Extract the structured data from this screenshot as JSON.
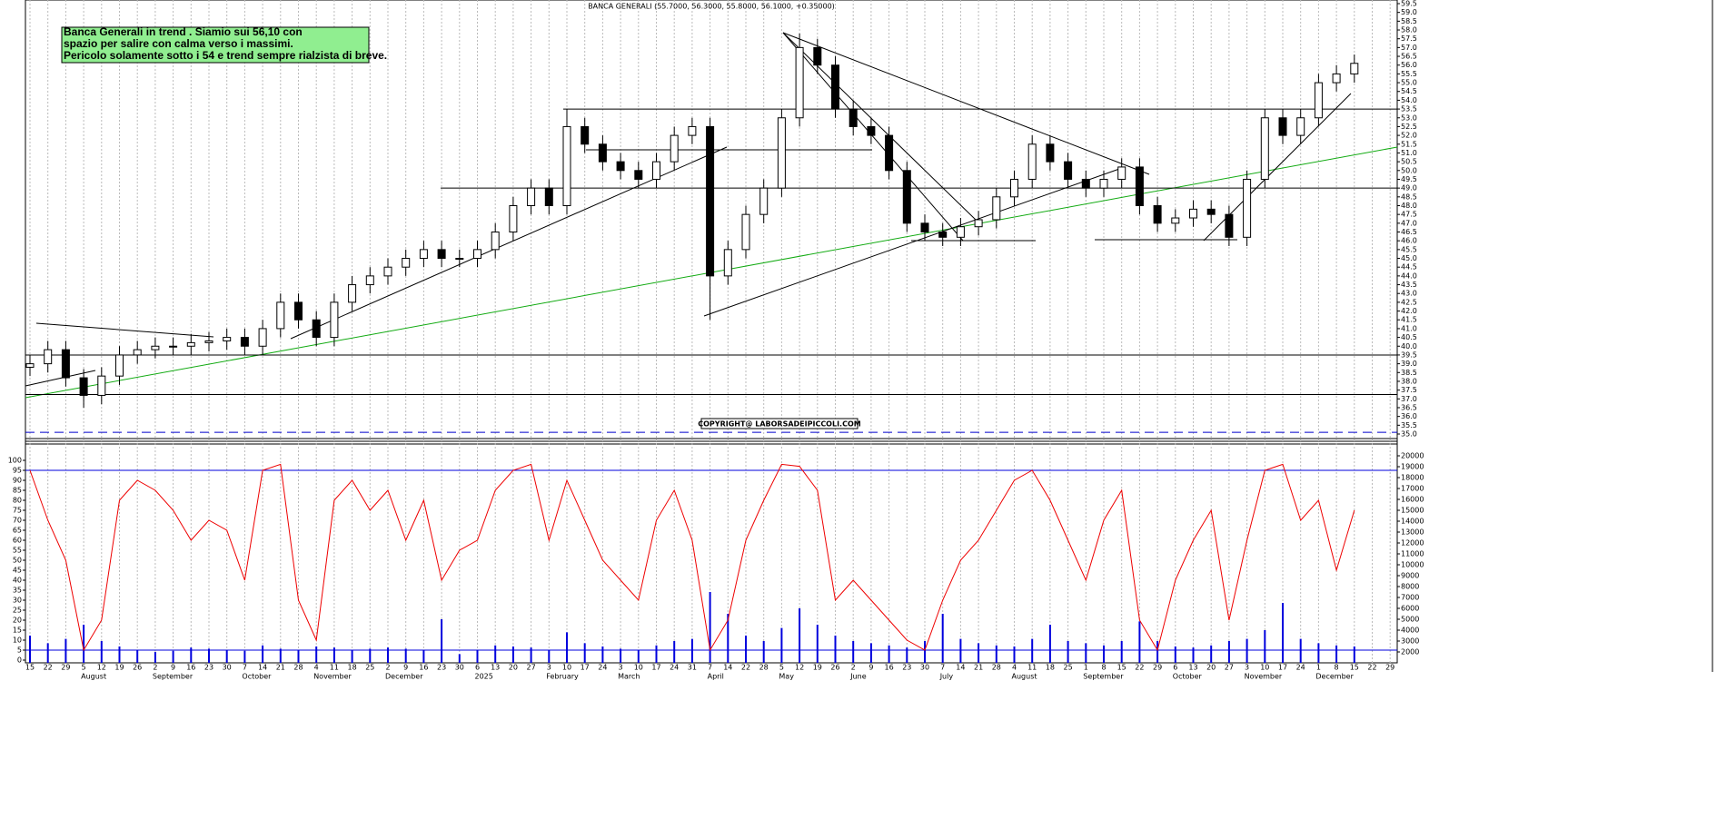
{
  "chart_data": [
    {
      "type": "candlestick",
      "title": "BANCA GENERALI (55.7000, 56.3000, 55.8000, 56.1000, +0.35000)",
      "annotation": [
        "Banca Generali in trend . Siamio sui 56,10 con",
        "spazio per salire con calma verso i massimi.",
        "Pericolo solamente sotto i 54 e trend sempre rialzista di breve."
      ],
      "copyright": "COPYRIGHT@ LABORSADEIPICCOLI.COM",
      "categories": [
        "15",
        "22",
        "29",
        "5",
        "12",
        "19",
        "26",
        "2",
        "9",
        "16",
        "23",
        "30",
        "7",
        "14",
        "21",
        "28",
        "4",
        "11",
        "18",
        "25",
        "2",
        "9",
        "16",
        "23",
        "30",
        "6",
        "13",
        "20",
        "27",
        "3",
        "10",
        "17",
        "24",
        "3",
        "10",
        "17",
        "24",
        "31",
        "7",
        "14",
        "22",
        "28",
        "5",
        "12",
        "19",
        "26",
        "2",
        "9",
        "16",
        "23",
        "30",
        "7",
        "14",
        "21",
        "28",
        "4",
        "11",
        "18",
        "25",
        "1",
        "8",
        "15",
        "22",
        "29",
        "6",
        "13",
        "20",
        "27",
        "3",
        "10",
        "17",
        "24",
        "1",
        "8",
        "15",
        "22",
        "29"
      ],
      "month_labels": [
        null,
        null,
        null,
        "August",
        null,
        null,
        null,
        "September",
        null,
        null,
        null,
        null,
        "October",
        null,
        null,
        null,
        "November",
        null,
        null,
        null,
        "December",
        null,
        null,
        null,
        null,
        "2025",
        null,
        null,
        null,
        "February",
        null,
        null,
        null,
        "March",
        null,
        null,
        null,
        null,
        "April",
        null,
        null,
        null,
        "May",
        null,
        null,
        null,
        "June",
        null,
        null,
        null,
        null,
        "July",
        null,
        null,
        null,
        "August",
        null,
        null,
        null,
        "September",
        null,
        null,
        null,
        null,
        "October",
        null,
        null,
        null,
        "November",
        null,
        null,
        null,
        "December",
        null,
        null,
        null,
        null
      ],
      "open": [
        38.8,
        39.0,
        39.8,
        38.2,
        37.2,
        38.3,
        39.5,
        39.8,
        40.0,
        40.0,
        40.2,
        40.3,
        40.5,
        40.0,
        41.0,
        42.5,
        41.5,
        40.5,
        42.5,
        43.5,
        44.0,
        44.5,
        45.0,
        45.5,
        45.0,
        45.0,
        45.5,
        46.5,
        48.0,
        49.0,
        48.0,
        52.5,
        51.5,
        50.5,
        50.0,
        49.5,
        50.5,
        52.0,
        52.5,
        44.0,
        45.5,
        47.5,
        49.0,
        53.0,
        57.0,
        56.0,
        53.5,
        52.5,
        52.0,
        50.0,
        47.0,
        46.5,
        46.2,
        46.8,
        47.2,
        48.5,
        49.5,
        51.5,
        50.5,
        49.5,
        49.0,
        49.5,
        50.2,
        48.0,
        47.0,
        47.3,
        47.8,
        47.5,
        46.2,
        49.5,
        53.0,
        52.0,
        53.0,
        55.0,
        55.5,
        null,
        null
      ],
      "high": [
        39.5,
        40.3,
        40.3,
        38.7,
        38.8,
        40.0,
        40.3,
        40.5,
        40.5,
        40.7,
        40.8,
        41.0,
        41.0,
        41.5,
        43.0,
        43.0,
        42.0,
        43.0,
        44.0,
        44.5,
        45.0,
        45.5,
        46.0,
        46.0,
        45.5,
        46.0,
        47.0,
        48.5,
        49.5,
        49.5,
        53.5,
        53.0,
        52.0,
        51.0,
        50.5,
        51.0,
        52.5,
        53.0,
        53.0,
        46.0,
        48.0,
        49.5,
        53.5,
        57.8,
        57.5,
        56.5,
        54.0,
        53.0,
        52.5,
        50.5,
        47.5,
        47.0,
        47.3,
        47.7,
        49.0,
        50.0,
        52.0,
        52.0,
        51.0,
        50.0,
        50.0,
        50.7,
        50.7,
        48.5,
        47.8,
        48.3,
        48.3,
        48.0,
        50.0,
        53.5,
        53.5,
        53.5,
        55.5,
        56.0,
        56.6,
        null,
        null
      ],
      "low": [
        38.3,
        38.5,
        37.7,
        36.5,
        36.7,
        37.8,
        39.0,
        39.3,
        39.5,
        39.5,
        39.7,
        39.8,
        39.5,
        39.5,
        40.5,
        41.0,
        40.0,
        40.0,
        42.0,
        43.0,
        43.5,
        44.0,
        44.5,
        44.5,
        44.5,
        44.5,
        45.0,
        46.0,
        47.5,
        47.5,
        47.5,
        51.0,
        50.0,
        49.5,
        49.0,
        49.0,
        50.0,
        51.5,
        41.5,
        43.5,
        45.0,
        47.0,
        48.5,
        52.5,
        55.5,
        53.0,
        52.0,
        51.5,
        49.5,
        46.5,
        46.0,
        45.7,
        45.7,
        46.3,
        46.7,
        48.0,
        49.0,
        50.0,
        49.0,
        48.5,
        48.5,
        49.0,
        47.5,
        46.5,
        46.5,
        46.8,
        47.0,
        45.7,
        45.7,
        49.0,
        51.5,
        51.5,
        52.5,
        54.5,
        55.0,
        null,
        null
      ],
      "close": [
        39.0,
        39.8,
        38.2,
        37.2,
        38.3,
        39.5,
        39.8,
        40.0,
        40.0,
        40.2,
        40.3,
        40.5,
        40.0,
        41.0,
        42.5,
        41.5,
        40.5,
        42.5,
        43.5,
        44.0,
        44.5,
        45.0,
        45.5,
        45.0,
        45.0,
        45.5,
        46.5,
        48.0,
        49.0,
        48.0,
        52.5,
        51.5,
        50.5,
        50.0,
        49.5,
        50.5,
        52.0,
        52.5,
        44.0,
        45.5,
        47.5,
        49.0,
        53.0,
        57.0,
        56.0,
        53.5,
        52.5,
        52.0,
        50.0,
        47.0,
        46.5,
        46.2,
        46.8,
        47.2,
        48.5,
        49.5,
        51.5,
        50.5,
        49.5,
        49.0,
        49.5,
        50.2,
        48.0,
        47.0,
        47.3,
        47.8,
        47.5,
        46.2,
        49.5,
        53.0,
        52.0,
        53.0,
        55.0,
        55.5,
        56.1,
        null,
        null
      ],
      "up_color": "#ffffff",
      "down_color": "#000000",
      "levels": [
        39.5,
        37.25,
        49.0,
        53.5
      ],
      "dashed_level": 35.1,
      "dashed_color": "#0000cc",
      "ylim": [
        35,
        59.5
      ],
      "yticks": [
        {
          "value": 35,
          "label": "35.0"
        },
        35.5,
        {
          "value": 36,
          "label": "36.0"
        },
        36.5,
        {
          "value": 37,
          "label": "37.0"
        },
        37.5,
        {
          "value": 38,
          "label": "38.0"
        },
        38.5,
        {
          "value": 39,
          "label": "39.0"
        },
        39.5,
        {
          "value": 40,
          "label": "40.0"
        },
        40.5,
        {
          "value": 41,
          "label": "41.0"
        },
        41.5,
        {
          "value": 42,
          "label": "42.0"
        },
        42.5,
        {
          "value": 43,
          "label": "43.0"
        },
        43.5,
        {
          "value": 44,
          "label": "44.0"
        },
        44.5,
        {
          "value": 45,
          "label": "45.0"
        },
        45.5,
        {
          "value": 46,
          "label": "46.0"
        },
        46.5,
        {
          "value": 47,
          "label": "47.0"
        },
        47.5,
        {
          "value": 48,
          "label": "48.0"
        },
        48.5,
        {
          "value": 49,
          "label": "49.0"
        },
        49.5,
        {
          "value": 50,
          "label": "50.0"
        },
        50.5,
        {
          "value": 51,
          "label": "51.0"
        },
        51.5,
        {
          "value": 52,
          "label": "52.0"
        },
        52.5,
        {
          "value": 53,
          "label": "53.0"
        },
        53.5,
        {
          "value": 54,
          "label": "54.0"
        },
        54.5,
        {
          "value": 55,
          "label": "55.0"
        },
        55.5,
        {
          "value": 56,
          "label": "56.0"
        },
        56.5,
        {
          "value": 57,
          "label": "57.0"
        },
        57.5,
        {
          "value": 58,
          "label": "58.0"
        },
        58.5,
        {
          "value": 59,
          "label": "59.0"
        },
        59.5
      ]
    },
    {
      "type": "indicator",
      "series": [
        {
          "type": "bar",
          "axis": "y2",
          "color": "#0000dd",
          "values": [
            3500,
            2800,
            3200,
            4500,
            3000,
            2500,
            2200,
            2000,
            2100,
            2400,
            2300,
            2200,
            2100,
            2600,
            2300,
            2200,
            2500,
            2400,
            2200,
            2300,
            2400,
            2300,
            2200,
            5000,
            1800,
            2200,
            2600,
            2500,
            2400,
            2200,
            3800,
            2800,
            2500,
            2300,
            2200,
            2600,
            3000,
            3200,
            7500,
            5500,
            3500,
            3000,
            4200,
            6000,
            4500,
            3500,
            3000,
            2800,
            2600,
            2400,
            3000,
            5500,
            3200,
            2800,
            2600,
            2500,
            3200,
            4500,
            3000,
            2800,
            2600,
            3000,
            4800,
            3000,
            2500,
            2400,
            2600,
            3000,
            3200,
            4000,
            6500,
            3200,
            2800,
            2600,
            2500,
            null,
            null
          ]
        },
        {
          "type": "line",
          "color": "#ee0000",
          "values": [
            95,
            70,
            50,
            5,
            20,
            80,
            90,
            85,
            75,
            60,
            70,
            65,
            40,
            95,
            98,
            30,
            10,
            80,
            90,
            75,
            85,
            60,
            80,
            40,
            55,
            60,
            85,
            95,
            98,
            60,
            90,
            70,
            50,
            40,
            30,
            70,
            85,
            60,
            5,
            20,
            60,
            80,
            98,
            97,
            85,
            30,
            40,
            30,
            20,
            10,
            5,
            30,
            50,
            60,
            75,
            90,
            95,
            80,
            60,
            40,
            70,
            85,
            20,
            5,
            40,
            60,
            75,
            20,
            60,
            95,
            98,
            70,
            80,
            45,
            75,
            null,
            null
          ]
        }
      ],
      "levels": [
        5,
        95
      ],
      "level_color": "#0000dd",
      "ylim": [
        0,
        100
      ],
      "yticks": [
        0,
        5,
        10,
        15,
        20,
        25,
        30,
        35,
        40,
        45,
        50,
        55,
        60,
        65,
        70,
        75,
        80,
        85,
        90,
        95,
        100
      ],
      "y2lim": [
        1000,
        20000
      ],
      "y2ticks": [
        2000,
        3000,
        4000,
        5000,
        6000,
        7000,
        8000,
        9000,
        10000,
        11000,
        12000,
        13000,
        14000,
        15000,
        16000,
        17000,
        18000,
        19000,
        20000
      ]
    }
  ]
}
